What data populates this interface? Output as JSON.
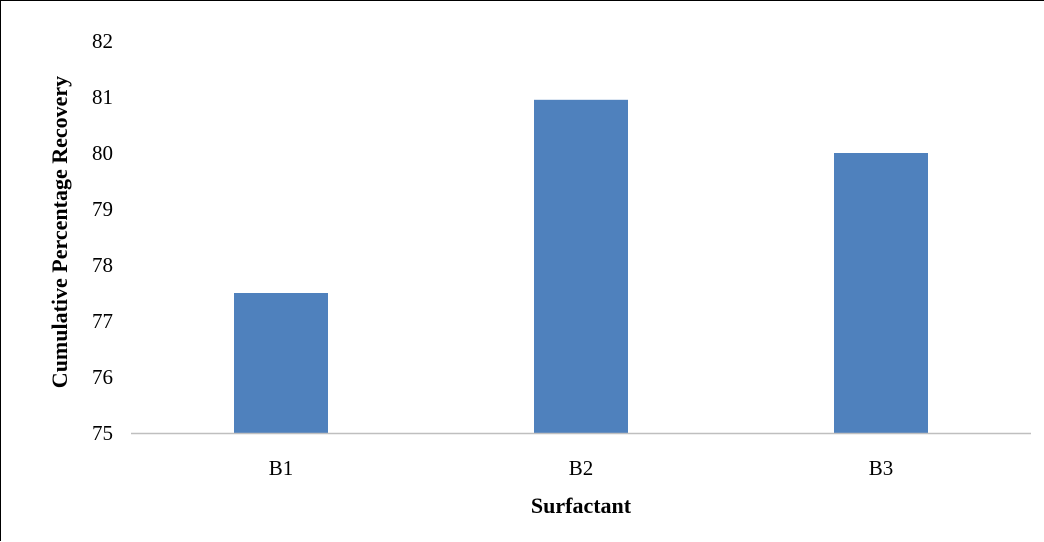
{
  "chart_data": {
    "type": "bar",
    "categories": [
      "B1",
      "B2",
      "B3"
    ],
    "values": [
      77.5,
      80.95,
      80.0
    ],
    "xlabel": "Surfactant",
    "ylabel": "Cumulative Percentage Recovery",
    "ylim": [
      75,
      82
    ],
    "yticks": [
      75,
      76,
      77,
      78,
      79,
      80,
      81,
      82
    ],
    "grid": false,
    "legend": "none",
    "colors": {
      "bar": "#4F81BD",
      "axis": "#BFBFBF"
    }
  }
}
